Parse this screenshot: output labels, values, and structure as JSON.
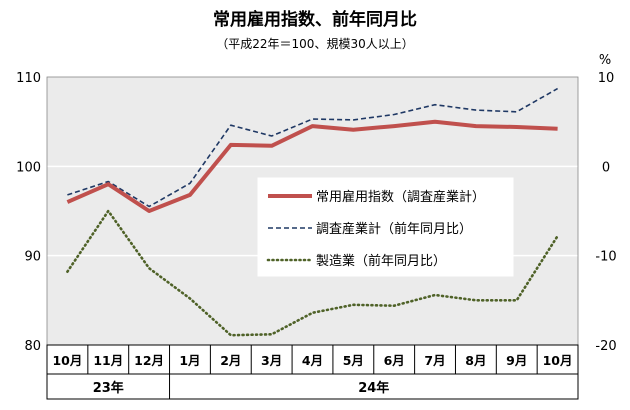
{
  "chart_data": {
    "type": "line",
    "title": "常用雇用指数、前年同月比",
    "subtitle": "（平成22年＝100、規模30人以上）",
    "y_right_unit": "%",
    "categories": [
      "10月",
      "11月",
      "12月",
      "1月",
      "2月",
      "3月",
      "4月",
      "5月",
      "6月",
      "7月",
      "8月",
      "9月",
      "10月"
    ],
    "year_groups": [
      {
        "label": "23年",
        "start": 0,
        "end": 2
      },
      {
        "label": "24年",
        "start": 3,
        "end": 12
      }
    ],
    "y_left": {
      "min": 80,
      "max": 110,
      "ticks": [
        80,
        90,
        100,
        110
      ]
    },
    "y_right": {
      "min": -20,
      "max": 10,
      "ticks": [
        -20,
        -10,
        0,
        10
      ]
    },
    "grid": true,
    "legend_position": "center-right",
    "colors": {
      "index": "#c0504d",
      "survey_yoy": "#1f3864",
      "manufacturing_yoy": "#4f6228",
      "plot_bg": "#ebebeb",
      "gridline": "#ffffff"
    },
    "series": [
      {
        "key": "index",
        "name": "常用雇用指数（調査産業計）",
        "axis": "left",
        "style": "solid",
        "values": [
          96.0,
          98.0,
          95.0,
          96.8,
          102.4,
          102.3,
          104.5,
          104.1,
          104.5,
          105.0,
          104.5,
          104.4,
          104.2
        ]
      },
      {
        "key": "survey_yoy",
        "name": "調査産業計（前年同月比）",
        "axis": "right",
        "style": "dashed",
        "values": [
          -3.2,
          -1.7,
          -4.5,
          -1.9,
          4.6,
          3.4,
          5.3,
          5.2,
          5.8,
          6.9,
          6.3,
          6.1,
          8.7
        ]
      },
      {
        "key": "manufacturing_yoy",
        "name": "製造業（前年同月比）",
        "axis": "right",
        "style": "dotted",
        "values": [
          -11.8,
          -5.0,
          -11.4,
          -14.8,
          -18.9,
          -18.8,
          -16.4,
          -15.5,
          -15.6,
          -14.4,
          -15.0,
          -15.0,
          -7.8
        ]
      }
    ]
  }
}
